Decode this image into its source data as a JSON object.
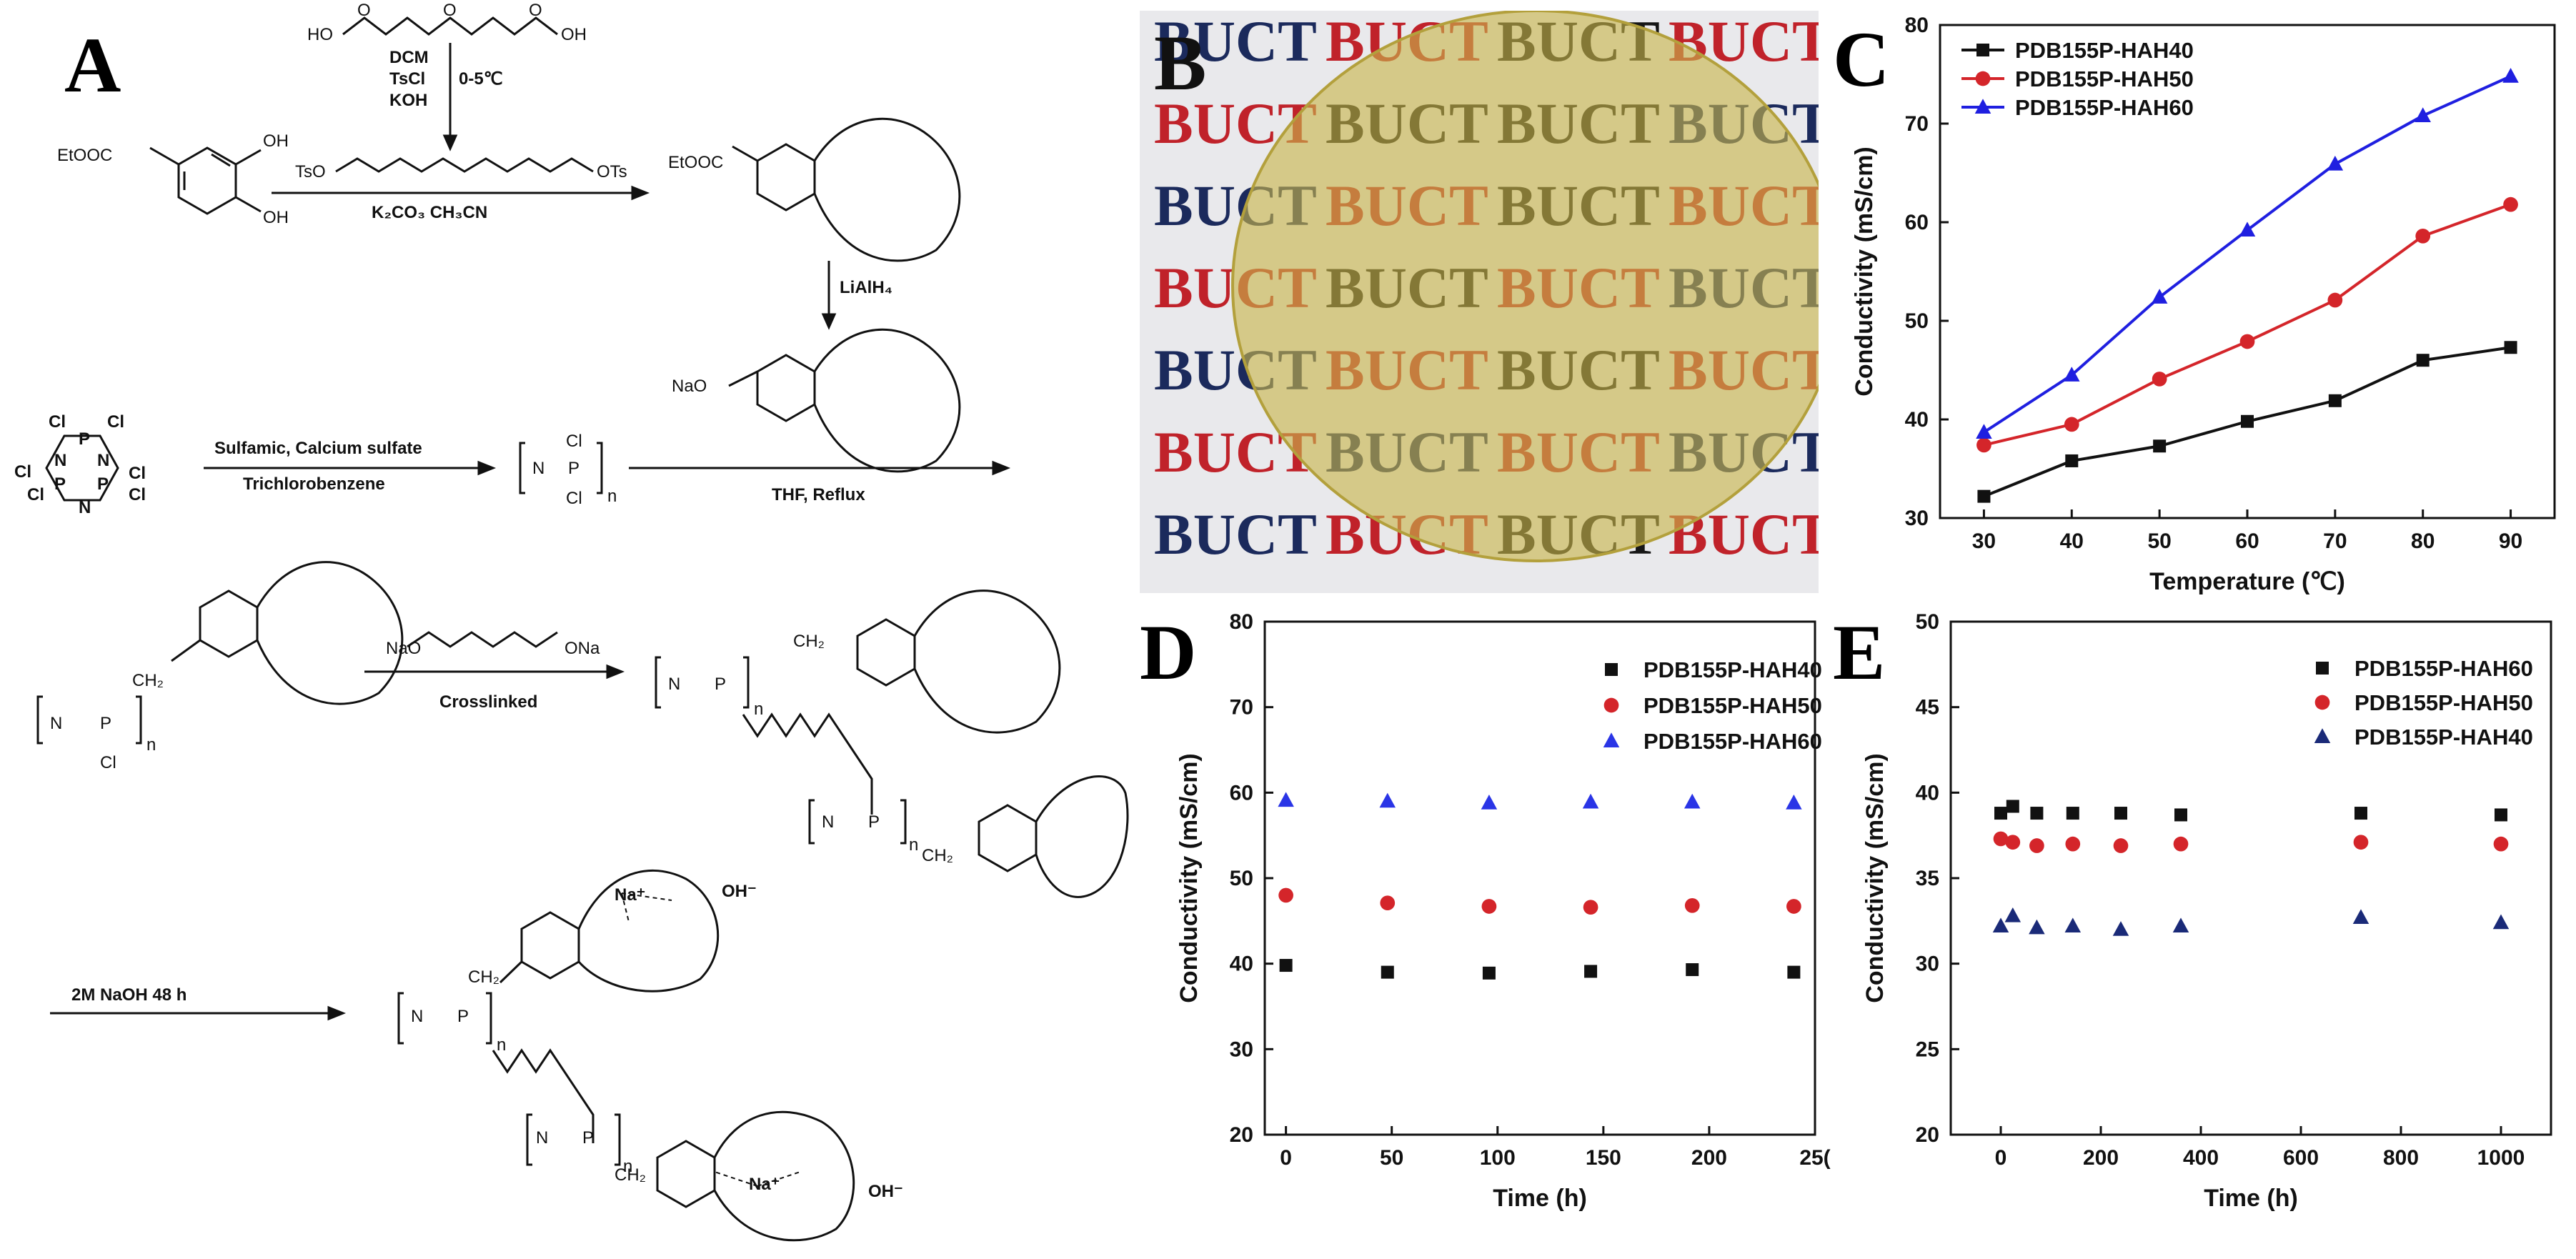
{
  "panel_letters": {
    "a": "A",
    "b": "B",
    "c": "C",
    "d": "D",
    "e": "E"
  },
  "scheme": {
    "peg_top": "HO",
    "peg_top_end": "OH",
    "peg_o": "O",
    "step1_reagents": [
      "DCM",
      "TsCl",
      "KOH"
    ],
    "step1_temp": "0-5℃",
    "ester_group": "EtOOC",
    "hydroxyl": "OH",
    "ts_left": "TsO",
    "ts_right": "OTs",
    "step2_reagents": "K₂CO₃  CH₃CN",
    "reductant": "LiAlH₄",
    "alkoxide": "NaO",
    "cl": "Cl",
    "n_atom": "N",
    "p_atom": "P",
    "poly_n": "N",
    "poly_p": "P",
    "subscript_n": "n",
    "step3_top": "Sulfamic, Calcium sulfate",
    "step3_bottom": "Trichlorobenzene",
    "step4": "THF, Reflux",
    "crosslinker_left": "NaO",
    "crosslinker_right": "ONa",
    "step5": "Crosslinked",
    "ch2": "CH₂",
    "step6": "2M NaOH 48 h",
    "na_ion": "Na⁺",
    "hydroxide": "OH⁻"
  },
  "photo": {
    "word": "BUCT",
    "colors": {
      "red": "#c0222a",
      "navy": "#1b2a5c",
      "black": "#161616",
      "film": "#c8b54a"
    }
  },
  "chart_data": [
    {
      "id": "C",
      "type": "line",
      "xlabel": "Temperature (℃)",
      "ylabel": "Conductivity (mS/cm)",
      "xlim": [
        25,
        95
      ],
      "ylim": [
        30,
        80
      ],
      "xticks": [
        30,
        40,
        50,
        60,
        70,
        80,
        90
      ],
      "yticks": [
        30,
        40,
        50,
        60,
        70,
        80
      ],
      "x": [
        30,
        40,
        50,
        60,
        70,
        80,
        90
      ],
      "legend_position": "top-left",
      "series": [
        {
          "name": "PDB155P-HAH40",
          "color": "#111111",
          "marker": "square",
          "values": [
            32.2,
            35.8,
            37.3,
            39.8,
            41.9,
            46.0,
            47.3
          ]
        },
        {
          "name": "PDB155P-HAH50",
          "color": "#d4252a",
          "marker": "circle",
          "values": [
            37.4,
            39.5,
            44.1,
            47.9,
            52.1,
            58.6,
            61.8
          ]
        },
        {
          "name": "PDB155P-HAH60",
          "color": "#1f1fe0",
          "marker": "triangle",
          "values": [
            38.7,
            44.5,
            52.4,
            59.2,
            65.9,
            70.8,
            74.8
          ]
        }
      ]
    },
    {
      "id": "D",
      "type": "scatter",
      "xlabel": "Time (h)",
      "ylabel": "Conductivity (mS/cm)",
      "xlim": [
        -10,
        250
      ],
      "ylim": [
        20,
        80
      ],
      "xticks": [
        0,
        50,
        100,
        150,
        200
      ],
      "xtick_partial": "25(",
      "yticks": [
        20,
        30,
        40,
        50,
        60,
        70,
        80
      ],
      "x": [
        0,
        48,
        96,
        144,
        192,
        240
      ],
      "legend_position": "top-right",
      "series": [
        {
          "name": "PDB155P-HAH40",
          "color": "#111111",
          "marker": "square",
          "values": [
            39.8,
            39.0,
            38.9,
            39.1,
            39.3,
            39.0
          ]
        },
        {
          "name": "PDB155P-HAH50",
          "color": "#d4252a",
          "marker": "circle",
          "values": [
            48.0,
            47.1,
            46.7,
            46.6,
            46.8,
            46.7
          ]
        },
        {
          "name": "PDB155P-HAH60",
          "color": "#2a35e6",
          "marker": "triangle",
          "values": [
            59.1,
            59.0,
            58.8,
            58.9,
            58.9,
            58.8
          ]
        }
      ]
    },
    {
      "id": "E",
      "type": "scatter",
      "xlabel": "Time (h)",
      "ylabel": "Conductivity (mS/cm)",
      "xlim": [
        -100,
        1100
      ],
      "ylim": [
        20,
        50
      ],
      "xticks": [
        0,
        200,
        400,
        600,
        800,
        1000
      ],
      "yticks": [
        20,
        25,
        30,
        35,
        40,
        45,
        50
      ],
      "legend_position": "top-right",
      "series": [
        {
          "name": "PDB155P-HAH60",
          "color": "#111111",
          "marker": "square",
          "x": [
            0,
            24,
            72,
            144,
            240,
            360,
            720,
            1000
          ],
          "values": [
            38.8,
            39.2,
            38.8,
            38.8,
            38.8,
            38.7,
            38.8,
            38.7
          ]
        },
        {
          "name": "PDB155P-HAH50",
          "color": "#d4252a",
          "marker": "circle",
          "x": [
            0,
            24,
            72,
            144,
            240,
            360,
            720,
            1000
          ],
          "values": [
            37.3,
            37.1,
            36.9,
            37.0,
            36.9,
            37.0,
            37.1,
            37.0
          ]
        },
        {
          "name": "PDB155P-HAH40",
          "color": "#1a2a78",
          "marker": "triangle",
          "x": [
            0,
            24,
            72,
            144,
            240,
            360,
            720,
            1000
          ],
          "values": [
            32.2,
            32.8,
            32.1,
            32.2,
            32.0,
            32.2,
            32.7,
            32.4
          ]
        }
      ]
    }
  ]
}
